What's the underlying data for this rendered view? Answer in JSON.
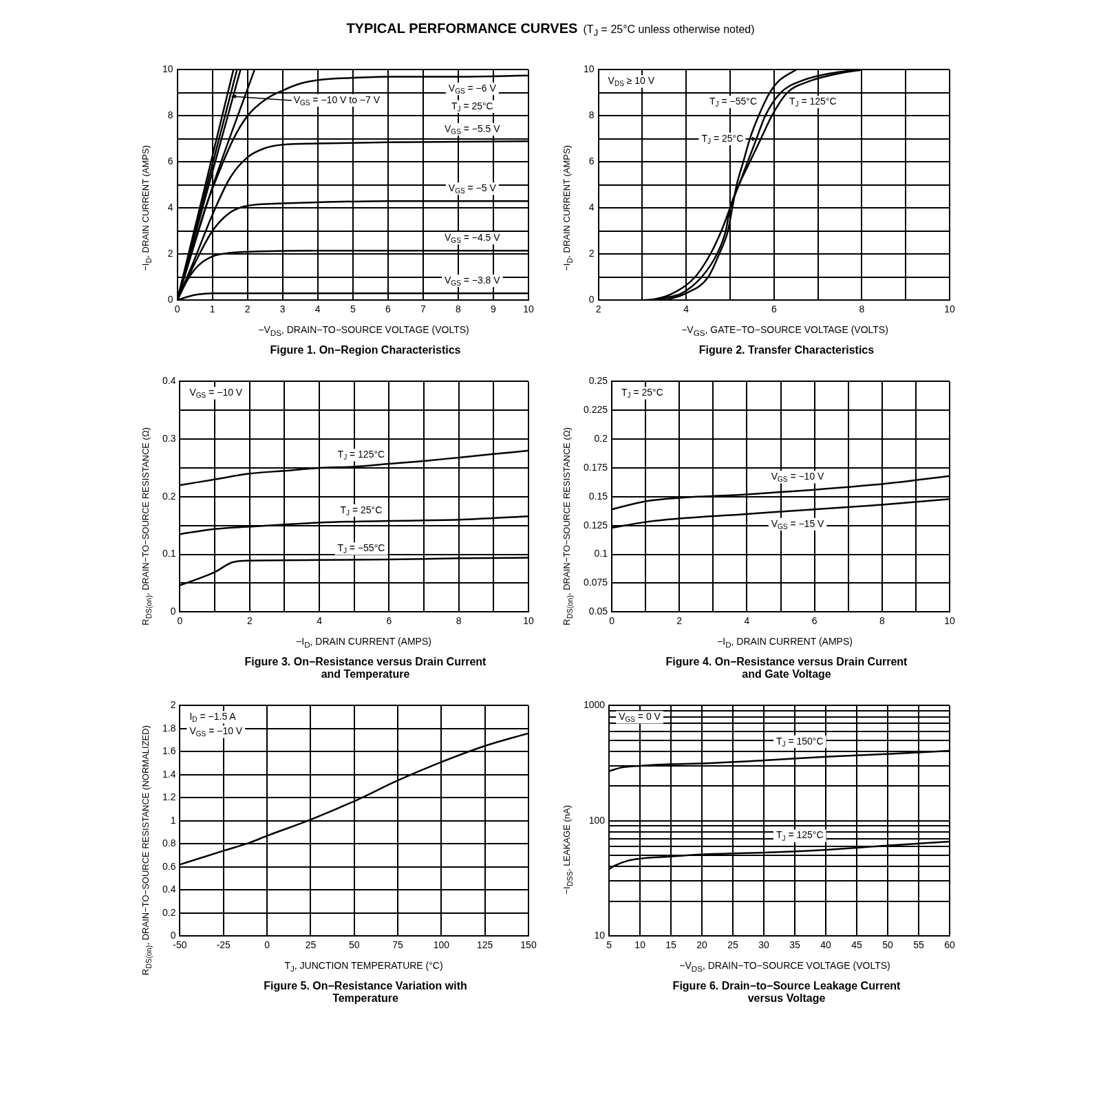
{
  "chart_data": [
    {
      "type": "other",
      "title": "TYPICAL PERFORMANCE CURVES",
      "subtitle": "(T$_{J}$ = 25°C unless otherwise noted)"
    },
    {
      "type": "line",
      "title": "Figure 1. On−Region Characteristics",
      "xlabel": "−V$_{DS}$, DRAIN−TO−SOURCE VOLTAGE (VOLTS)",
      "ylabel": "−I$_{D}$, DRAIN CURRENT (AMPS)",
      "xlim": [
        0,
        10
      ],
      "ylim": [
        0,
        10
      ],
      "xticks": [
        0,
        1,
        2,
        3,
        4,
        5,
        6,
        7,
        8,
        9,
        10
      ],
      "yticks": [
        0,
        {
          "value": 1,
          "label": null
        },
        2,
        {
          "value": 3,
          "label": null
        },
        4,
        {
          "value": 5,
          "label": null
        },
        6,
        {
          "value": 7,
          "label": null
        },
        8,
        {
          "value": 9,
          "label": null
        },
        10
      ],
      "grid": true,
      "annotations": [
        "T$_{J}$ = 25°C",
        {
          "text": "V$_{GS}$ = −10 V to −7 V",
          "x": 1.55,
          "y": 8.85
        }
      ],
      "series": [
        {
          "name": "V$_{GS}$ = −6 V",
          "color": "#000000",
          "x": [
            0,
            0.4,
            0.8,
            1.2,
            1.6,
            2,
            2.5,
            3,
            3.5,
            4,
            5,
            6,
            8,
            10
          ],
          "values": [
            0,
            2,
            4,
            5.6,
            7,
            8,
            8.7,
            9.1,
            9.4,
            9.55,
            9.65,
            9.7,
            9.7,
            9.75
          ]
        },
        {
          "name": "V$_{GS}$ = −5.5 V",
          "color": "#000000",
          "x": [
            0,
            0.5,
            1,
            1.5,
            2,
            2.5,
            3,
            4,
            6,
            10
          ],
          "values": [
            0,
            1.8,
            3.7,
            5.3,
            6.2,
            6.6,
            6.75,
            6.8,
            6.85,
            6.9
          ]
        },
        {
          "name": "V$_{GS}$ = −5 V",
          "color": "#000000",
          "x": [
            0,
            0.5,
            1,
            1.5,
            2,
            3,
            4,
            6,
            10
          ],
          "values": [
            0,
            1.6,
            3,
            3.8,
            4.1,
            4.2,
            4.25,
            4.3,
            4.3
          ]
        },
        {
          "name": "V$_{GS}$ = −4.5 V",
          "color": "#000000",
          "x": [
            0,
            0.3,
            0.6,
            1,
            1.5,
            2,
            4,
            10
          ],
          "values": [
            0,
            0.9,
            1.5,
            1.9,
            2.05,
            2.1,
            2.15,
            2.15
          ]
        },
        {
          "name": "V$_{GS}$ = −3.8 V",
          "color": "#000000",
          "x": [
            0,
            0.3,
            0.6,
            1,
            2,
            10
          ],
          "values": [
            0,
            0.15,
            0.25,
            0.3,
            0.3,
            0.3
          ]
        },
        {
          "color": "#000000",
          "x": [
            0,
            1.6
          ],
          "values": [
            0,
            10
          ]
        },
        {
          "color": "#000000",
          "x": [
            0,
            1.7
          ],
          "values": [
            0,
            10
          ]
        },
        {
          "color": "#000000",
          "x": [
            0,
            1.8
          ],
          "values": [
            0,
            10
          ]
        },
        {
          "color": "#000000",
          "x": [
            0,
            1,
            2.2
          ],
          "values": [
            0,
            4.9,
            10
          ]
        }
      ]
    },
    {
      "type": "line",
      "title": "Figure 2. Transfer Characteristics",
      "xlabel": "−V$_{GS}$, GATE−TO−SOURCE VOLTAGE (VOLTS)",
      "ylabel": "−I$_{D}$, DRAIN CURRENT (AMPS)",
      "xlim": [
        2,
        10
      ],
      "ylim": [
        0,
        10
      ],
      "xticks": [
        2,
        {
          "value": 3,
          "label": null
        },
        4,
        {
          "value": 5,
          "label": null
        },
        6,
        {
          "value": 7,
          "label": null
        },
        8,
        {
          "value": 9,
          "label": null
        },
        10
      ],
      "yticks": [
        0,
        {
          "value": 1,
          "label": null
        },
        2,
        {
          "value": 3,
          "label": null
        },
        4,
        {
          "value": 5,
          "label": null
        },
        6,
        {
          "value": 7,
          "label": null
        },
        8,
        {
          "value": 9,
          "label": null
        },
        10
      ],
      "grid": true,
      "annotations": [
        "V$_{DS}$ ≥ 10 V"
      ],
      "series": [
        {
          "name": "T$_{J}$ = −55°C",
          "color": "#000000",
          "x": [
            2,
            3.2,
            3.6,
            4,
            4.5,
            4.75,
            4.95,
            5.05,
            5.15,
            5.3,
            5.45,
            5.65,
            5.9,
            6.1,
            6.5
          ],
          "values": [
            0,
            0,
            0.05,
            0.3,
            1,
            2,
            3,
            4,
            5,
            6,
            7,
            8,
            9,
            9.5,
            10
          ]
        },
        {
          "name": "T$_{J}$ = 25°C",
          "color": "#000000",
          "x": [
            2,
            3.1,
            3.5,
            3.9,
            4.35,
            4.7,
            4.9,
            5,
            5.2,
            5.4,
            5.6,
            5.8,
            6.15,
            6.6,
            7.3,
            7.9
          ],
          "values": [
            0,
            0,
            0.1,
            0.3,
            1,
            2,
            3,
            4,
            5,
            6,
            7,
            8,
            9,
            9.5,
            9.85,
            10
          ]
        },
        {
          "name": "T$_{J}$ = 125°C",
          "color": "#000000",
          "x": [
            2,
            3,
            3.3,
            3.7,
            4.2,
            4.55,
            4.8,
            5,
            5.2,
            5.45,
            5.7,
            5.95,
            6.3,
            6.8,
            7.5,
            8
          ],
          "values": [
            0,
            0,
            0.05,
            0.3,
            1,
            2,
            3,
            4,
            5,
            6,
            7,
            8,
            9,
            9.5,
            9.85,
            10
          ]
        }
      ]
    },
    {
      "type": "line",
      "title": "Figure 3. On−Resistance versus Drain Current and Temperature",
      "xlabel": "−I$_{D}$, DRAIN CURRENT (AMPS)",
      "ylabel": "R$_{DS(on)}$, DRAIN−TO−SOURCE RESISTANCE (Ω)",
      "xlim": [
        0,
        10
      ],
      "ylim": [
        0,
        0.4
      ],
      "xticks": [
        0,
        {
          "value": 1,
          "label": null
        },
        2,
        {
          "value": 3,
          "label": null
        },
        4,
        {
          "value": 5,
          "label": null
        },
        6,
        {
          "value": 7,
          "label": null
        },
        8,
        {
          "value": 9,
          "label": null
        },
        10
      ],
      "yticks": [
        0,
        {
          "value": 0.05,
          "label": null
        },
        0.1,
        {
          "value": 0.15,
          "label": null
        },
        0.2,
        {
          "value": 0.25,
          "label": null
        },
        0.3,
        {
          "value": 0.35,
          "label": null
        },
        0.4
      ],
      "grid": true,
      "annotations": [
        "V$_{GS}$ = −10 V"
      ],
      "series": [
        {
          "name": "T$_{J}$ = 125°C",
          "color": "#000000",
          "x": [
            0,
            1,
            2,
            3,
            4,
            5,
            6,
            7,
            8,
            9,
            10
          ],
          "values": [
            0.22,
            0.23,
            0.24,
            0.245,
            0.25,
            0.252,
            0.257,
            0.262,
            0.268,
            0.274,
            0.28
          ]
        },
        {
          "name": "T$_{J}$ = 25°C",
          "color": "#000000",
          "x": [
            0,
            1,
            2,
            4,
            6,
            8,
            10
          ],
          "values": [
            0.135,
            0.144,
            0.148,
            0.155,
            0.158,
            0.16,
            0.166
          ]
        },
        {
          "name": "T$_{J}$ = −55°C",
          "color": "#000000",
          "x": [
            0,
            1,
            1.5,
            2,
            4,
            6,
            8,
            10
          ],
          "values": [
            0.046,
            0.069,
            0.086,
            0.089,
            0.09,
            0.091,
            0.093,
            0.094
          ]
        }
      ]
    },
    {
      "type": "line",
      "title": "Figure 4. On−Resistance versus Drain Current and Gate Voltage",
      "xlabel": "−I$_{D}$, DRAIN CURRENT (AMPS)",
      "ylabel": "R$_{DS(on)}$, DRAIN−TO−SOURCE RESISTANCE (Ω)",
      "xlim": [
        0,
        10
      ],
      "ylim": [
        0.05,
        0.25
      ],
      "xticks": [
        0,
        {
          "value": 1,
          "label": null
        },
        2,
        {
          "value": 3,
          "label": null
        },
        4,
        {
          "value": 5,
          "label": null
        },
        6,
        {
          "value": 7,
          "label": null
        },
        8,
        {
          "value": 9,
          "label": null
        },
        10
      ],
      "yticks": [
        0.05,
        0.075,
        0.1,
        0.125,
        0.15,
        0.175,
        0.2,
        0.225,
        0.25
      ],
      "grid": true,
      "annotations": [
        "T$_{J}$ = 25°C"
      ],
      "series": [
        {
          "name": "V$_{GS}$ = −10 V",
          "color": "#000000",
          "x": [
            0,
            1,
            2,
            4,
            5,
            6,
            8,
            10
          ],
          "values": [
            0.139,
            0.146,
            0.149,
            0.152,
            0.154,
            0.156,
            0.161,
            0.168
          ]
        },
        {
          "name": "V$_{GS}$ = −15 V",
          "color": "#000000",
          "x": [
            0,
            1,
            2,
            4,
            6,
            8,
            10
          ],
          "values": [
            0.123,
            0.128,
            0.131,
            0.135,
            0.139,
            0.143,
            0.148
          ]
        }
      ]
    },
    {
      "type": "line",
      "title": "Figure 5. On−Resistance Variation with Temperature",
      "xlabel": "T$_{J}$, JUNCTION TEMPERATURE (°C)",
      "ylabel": "R$_{DS(on)}$, DRAIN−TO−SOURCE RESISTANCE (NORMALIZED)",
      "xlim": [
        -50,
        150
      ],
      "ylim": [
        0,
        2
      ],
      "xticks": [
        -50,
        -25,
        0,
        25,
        50,
        75,
        100,
        125,
        150
      ],
      "yticks": [
        0,
        0.2,
        0.4,
        0.6,
        0.8,
        1,
        1.2,
        1.4,
        1.6,
        1.8,
        2
      ],
      "grid": true,
      "annotations": [
        "I$_{D}$ = −1.5 A",
        "V$_{GS}$ = −10 V"
      ],
      "series": [
        {
          "color": "#000000",
          "x": [
            -50,
            -25,
            -10,
            0,
            25,
            50,
            75,
            100,
            125,
            150
          ],
          "values": [
            0.62,
            0.74,
            0.81,
            0.87,
            1.01,
            1.17,
            1.35,
            1.51,
            1.65,
            1.76
          ]
        }
      ]
    },
    {
      "type": "line",
      "title": "Figure 6. Drain−to−Source Leakage Current versus Voltage",
      "xlabel": "−V$_{DS}$, DRAIN−TO−SOURCE VOLTAGE (VOLTS)",
      "ylabel": "−I$_{DSS}$, LEAKAGE (nA)",
      "xlim": [
        5,
        60
      ],
      "ylim": [
        10,
        1000
      ],
      "log": true,
      "xticks": [
        5,
        10,
        15,
        20,
        25,
        30,
        35,
        40,
        45,
        50,
        55,
        60
      ],
      "yticks": [
        10,
        {
          "value": 20,
          "label": null
        },
        {
          "value": 30,
          "label": null
        },
        {
          "value": 40,
          "label": null
        },
        {
          "value": 50,
          "label": null
        },
        {
          "value": 60,
          "label": null
        },
        {
          "value": 70,
          "label": null
        },
        {
          "value": 80,
          "label": null
        },
        {
          "value": 90,
          "label": null
        },
        100,
        {
          "value": 200,
          "label": null
        },
        {
          "value": 300,
          "label": null
        },
        {
          "value": 400,
          "label": null
        },
        {
          "value": 500,
          "label": null
        },
        {
          "value": 600,
          "label": null
        },
        {
          "value": 700,
          "label": null
        },
        {
          "value": 800,
          "label": null
        },
        {
          "value": 900,
          "label": null
        },
        1000
      ],
      "grid": true,
      "annotations": [
        "V$_{GS}$ = 0 V"
      ],
      "series": [
        {
          "name": "T$_{J}$ = 150°C",
          "color": "#000000",
          "x": [
            5,
            7,
            10,
            15,
            20,
            30,
            40,
            50,
            60
          ],
          "values": [
            270,
            290,
            300,
            310,
            315,
            335,
            360,
            380,
            405
          ]
        },
        {
          "name": "T$_{J}$ = 125°C",
          "color": "#000000",
          "x": [
            5,
            6,
            8,
            10,
            15,
            20,
            30,
            40,
            50,
            60
          ],
          "values": [
            38,
            41,
            45,
            47,
            49,
            51,
            53,
            56,
            61,
            66
          ]
        }
      ]
    }
  ]
}
